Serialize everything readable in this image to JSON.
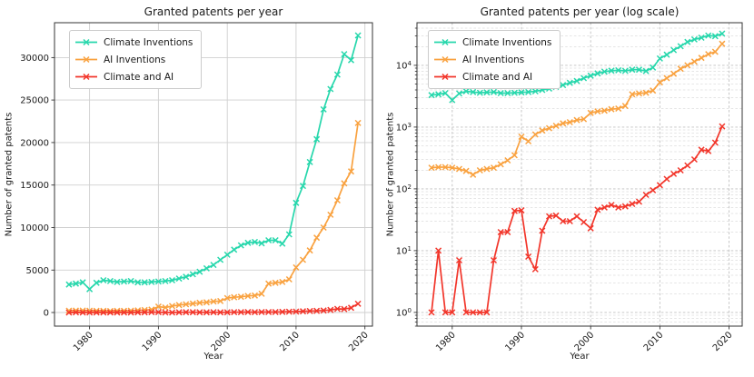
{
  "chart_data": [
    {
      "id": "linear",
      "type": "line",
      "title": "Granted patents per year",
      "xlabel": "Year",
      "ylabel": "Number of granted patents",
      "yscale": "linear",
      "xlim": [
        1974.9,
        2021.1
      ],
      "ylim": [
        -1600,
        34100
      ],
      "xticks": [
        1980,
        1990,
        2000,
        2010,
        2020
      ],
      "xtick_labels": [
        "1980",
        "1990",
        "2000",
        "2010",
        "2020"
      ],
      "yticks": [
        0,
        5000,
        10000,
        15000,
        20000,
        25000,
        30000
      ],
      "ytick_labels": [
        "0",
        "5000",
        "10000",
        "15000",
        "20000",
        "25000",
        "30000"
      ],
      "grid": {
        "style": "solid",
        "which": "major",
        "major_color": "#cfcfcf",
        "minor_color": "#e0e0e0"
      },
      "legend_position": "upper left",
      "x": [
        1977,
        1978,
        1979,
        1980,
        1981,
        1982,
        1983,
        1984,
        1985,
        1986,
        1987,
        1988,
        1989,
        1990,
        1991,
        1992,
        1993,
        1994,
        1995,
        1996,
        1997,
        1998,
        1999,
        2000,
        2001,
        2002,
        2003,
        2004,
        2005,
        2006,
        2007,
        2008,
        2009,
        2010,
        2011,
        2012,
        2013,
        2014,
        2015,
        2016,
        2017,
        2018,
        2019
      ],
      "series": [
        {
          "name": "Climate Inventions",
          "color": "#27d7ac",
          "marker": "x",
          "values": [
            3300,
            3400,
            3550,
            2750,
            3500,
            3800,
            3700,
            3600,
            3650,
            3700,
            3550,
            3550,
            3600,
            3650,
            3700,
            3800,
            4000,
            4200,
            4500,
            4800,
            5200,
            5600,
            6200,
            6800,
            7400,
            7900,
            8200,
            8300,
            8150,
            8500,
            8500,
            8100,
            9200,
            12900,
            14900,
            17700,
            20400,
            23900,
            26300,
            28000,
            30400,
            29700,
            32600
          ]
        },
        {
          "name": "AI Inventions",
          "color": "#f9a240",
          "marker": "x",
          "values": [
            220,
            225,
            225,
            220,
            210,
            195,
            170,
            200,
            210,
            220,
            250,
            290,
            350,
            700,
            590,
            760,
            880,
            960,
            1050,
            1150,
            1200,
            1300,
            1350,
            1700,
            1800,
            1850,
            1950,
            2000,
            2200,
            3400,
            3500,
            3600,
            3900,
            5300,
            6200,
            7300,
            8800,
            10000,
            11500,
            13200,
            15200,
            16600,
            22300
          ]
        },
        {
          "name": "Climate and AI",
          "color": "#f2362b",
          "marker": "x",
          "values": [
            1,
            10,
            1,
            1,
            7,
            1,
            1,
            1,
            1,
            7,
            20,
            20,
            44,
            45,
            8,
            5,
            21,
            36,
            37,
            30,
            30,
            36,
            29,
            23,
            46,
            50,
            55,
            50,
            52,
            57,
            62,
            80,
            95,
            115,
            145,
            175,
            200,
            240,
            300,
            430,
            410,
            560,
            1030
          ]
        }
      ]
    },
    {
      "id": "log",
      "type": "line",
      "title": "Granted patents per year (log scale)",
      "xlabel": "Year",
      "ylabel": "Number of granted patents",
      "yscale": "log",
      "xlim": [
        1974.9,
        2021.9
      ],
      "ylim": [
        0.6,
        49000
      ],
      "xticks": [
        1980,
        1990,
        2000,
        2010,
        2020
      ],
      "xtick_labels": [
        "1980",
        "1990",
        "2000",
        "2010",
        "2020"
      ],
      "yticks": [
        1,
        10,
        100,
        1000,
        10000
      ],
      "ytick_exponents": [
        "0",
        "1",
        "2",
        "3",
        "4"
      ],
      "grid": {
        "style": "dashed",
        "which": "both",
        "major_color": "#c0c0c0",
        "minor_color": "#dddddd"
      },
      "legend_position": "upper left",
      "x": [
        1977,
        1978,
        1979,
        1980,
        1981,
        1982,
        1983,
        1984,
        1985,
        1986,
        1987,
        1988,
        1989,
        1990,
        1991,
        1992,
        1993,
        1994,
        1995,
        1996,
        1997,
        1998,
        1999,
        2000,
        2001,
        2002,
        2003,
        2004,
        2005,
        2006,
        2007,
        2008,
        2009,
        2010,
        2011,
        2012,
        2013,
        2014,
        2015,
        2016,
        2017,
        2018,
        2019
      ],
      "series": [
        {
          "name": "Climate Inventions",
          "color": "#27d7ac",
          "marker": "x",
          "values": [
            3300,
            3400,
            3550,
            2750,
            3500,
            3800,
            3700,
            3600,
            3650,
            3700,
            3550,
            3550,
            3600,
            3650,
            3700,
            3800,
            4000,
            4200,
            4500,
            4800,
            5200,
            5600,
            6200,
            6800,
            7400,
            7900,
            8200,
            8300,
            8150,
            8500,
            8500,
            8100,
            9200,
            12900,
            14900,
            17700,
            20400,
            23900,
            26300,
            28000,
            30400,
            29700,
            32600
          ]
        },
        {
          "name": "AI Inventions",
          "color": "#f9a240",
          "marker": "x",
          "values": [
            220,
            225,
            225,
            220,
            210,
            195,
            170,
            200,
            210,
            220,
            250,
            290,
            350,
            700,
            590,
            760,
            880,
            960,
            1050,
            1150,
            1200,
            1300,
            1350,
            1700,
            1800,
            1850,
            1950,
            2000,
            2200,
            3400,
            3500,
            3600,
            3900,
            5300,
            6200,
            7300,
            8800,
            10000,
            11500,
            13200,
            15200,
            16600,
            22300
          ]
        },
        {
          "name": "Climate and AI",
          "color": "#f2362b",
          "marker": "x",
          "values": [
            1,
            10,
            1,
            1,
            7,
            1,
            1,
            1,
            1,
            7,
            20,
            20,
            44,
            45,
            8,
            5,
            21,
            36,
            37,
            30,
            30,
            36,
            29,
            23,
            46,
            50,
            55,
            50,
            52,
            57,
            62,
            80,
            95,
            115,
            145,
            175,
            200,
            240,
            300,
            430,
            410,
            560,
            1030
          ]
        }
      ]
    }
  ],
  "style": {
    "text_color": "#1a1a1a",
    "spine_color": "#333333",
    "background": "#ffffff"
  }
}
